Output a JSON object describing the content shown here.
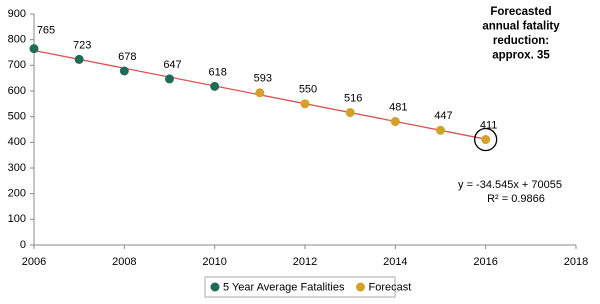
{
  "chart_data": {
    "type": "scatter",
    "series": [
      {
        "name": "5 Year Average Fatalities",
        "color": "#1f6b57",
        "x": [
          2006,
          2007,
          2008,
          2009,
          2010
        ],
        "values": [
          765,
          723,
          678,
          647,
          618
        ]
      },
      {
        "name": "Forecast",
        "color": "#d4a02a",
        "x": [
          2011,
          2012,
          2013,
          2014,
          2015,
          2016
        ],
        "values": [
          593,
          550,
          516,
          481,
          447,
          411
        ]
      }
    ],
    "xlim": [
      2006,
      2018
    ],
    "xticks": [
      2006,
      2008,
      2010,
      2012,
      2014,
      2016,
      2018
    ],
    "ylim": [
      0,
      900
    ],
    "yticks": [
      0,
      100,
      200,
      300,
      400,
      500,
      600,
      700,
      800,
      900
    ],
    "trendline": {
      "slope": -34.545,
      "intercept": 70055,
      "color": "#d9534f",
      "label": "y = -34.545x + 70055",
      "r2_label": "R² = 0.9866"
    },
    "annotation": [
      "Forecasted",
      "annual fatality",
      "reduction:",
      "approx. 35"
    ],
    "legend": "bottom"
  }
}
